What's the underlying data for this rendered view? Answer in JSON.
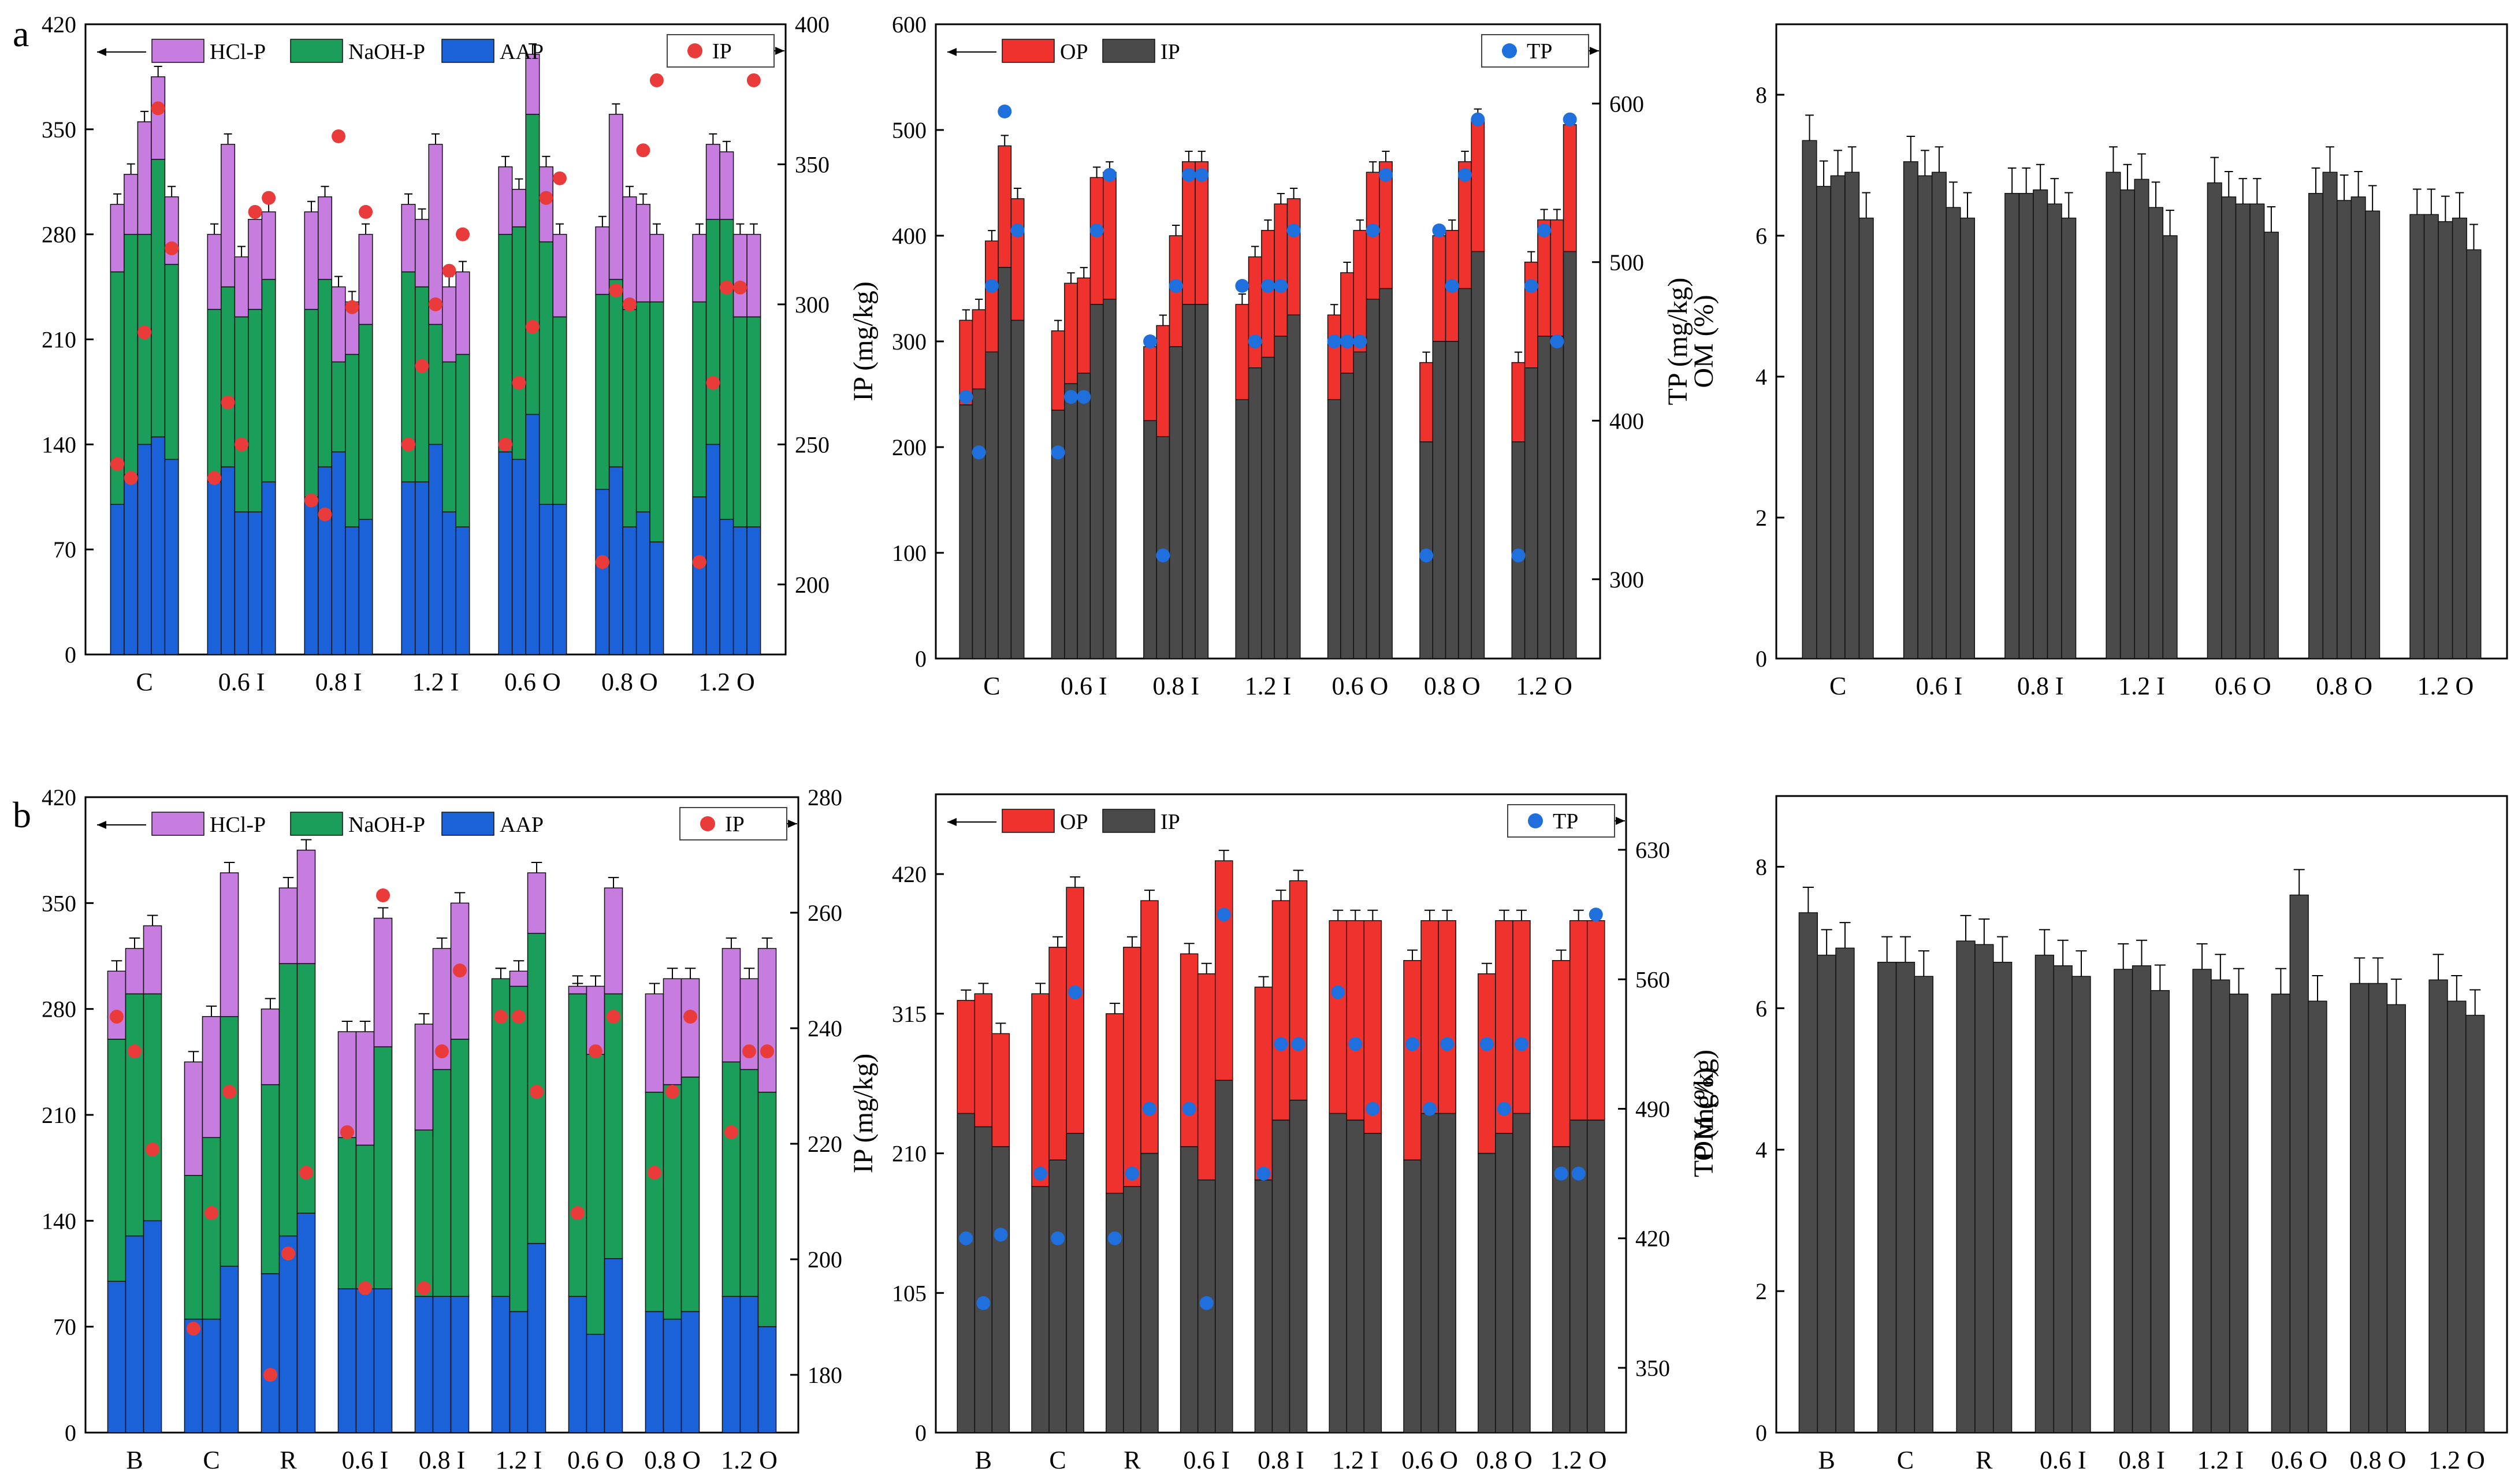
{
  "figure": {
    "row_labels": [
      "a",
      "b"
    ]
  },
  "colors": {
    "hcl": "#c77de0",
    "naoh": "#1a9e5a",
    "aap": "#1b62d8",
    "op": "#f0322e",
    "ip": "#4a4a4a",
    "om": "#4a4a4a",
    "ip_dot": "#ea3b3b",
    "tp_dot": "#1f6fdc"
  },
  "chart_data": [
    {
      "id": "a-frac",
      "type": "bar",
      "stacked": true,
      "categories": [
        "C",
        "0.6 I",
        "0.8 I",
        "1.2 I",
        "0.6 O",
        "0.8 O",
        "1.2 O"
      ],
      "bars_per_group": 5,
      "ylim": [
        0,
        420
      ],
      "yticks": [
        0,
        70,
        140,
        210,
        280,
        350,
        420
      ],
      "y2lim": [
        175,
        400
      ],
      "y2ticks": [
        200,
        250,
        300,
        350,
        400
      ],
      "legend": [
        "HCl-P",
        "NaOH-P",
        "AAP"
      ],
      "dot_legend": "IP",
      "series": [
        {
          "name": "AAP",
          "values": [
            [
              100,
              120,
              140,
              145,
              130
            ],
            [
              115,
              125,
              95,
              95,
              115
            ],
            [
              105,
              125,
              135,
              85,
              90
            ],
            [
              115,
              115,
              140,
              95,
              85
            ],
            [
              135,
              130,
              160,
              100,
              100
            ],
            [
              110,
              125,
              85,
              95,
              75
            ],
            [
              105,
              140,
              90,
              85,
              85
            ]
          ]
        },
        {
          "name": "NaOH-P",
          "values": [
            [
              155,
              160,
              140,
              185,
              130
            ],
            [
              115,
              120,
              130,
              135,
              135
            ],
            [
              125,
              125,
              60,
              115,
              130
            ],
            [
              140,
              130,
              80,
              100,
              115
            ],
            [
              145,
              155,
              200,
              175,
              125
            ],
            [
              130,
              125,
              145,
              140,
              160
            ],
            [
              130,
              150,
              200,
              140,
              140
            ]
          ]
        },
        {
          "name": "HCl-P",
          "values": [
            [
              45,
              40,
              75,
              55,
              45
            ],
            [
              50,
              95,
              40,
              60,
              45
            ],
            [
              65,
              55,
              50,
              35,
              60
            ],
            [
              45,
              45,
              120,
              50,
              55
            ],
            [
              45,
              25,
              40,
              50,
              55
            ],
            [
              45,
              110,
              75,
              65,
              45
            ],
            [
              45,
              50,
              45,
              55,
              55
            ]
          ]
        }
      ],
      "dots": [
        [
          243,
          238,
          290,
          370,
          320
        ],
        [
          238,
          265,
          250,
          333,
          338
        ],
        [
          230,
          225,
          360,
          299,
          333
        ],
        [
          250,
          278,
          300,
          312,
          325
        ],
        [
          250,
          272,
          292,
          338,
          345
        ],
        [
          208,
          305,
          300,
          355,
          380
        ],
        [
          208,
          272,
          306,
          306,
          380
        ]
      ]
    },
    {
      "id": "a-ip",
      "type": "bar",
      "stacked": true,
      "categories": [
        "C",
        "0.6 I",
        "0.8 I",
        "1.2 I",
        "0.6 O",
        "0.8 O",
        "1.2 O"
      ],
      "bars_per_group": 5,
      "ylabel": "IP (mg/kg)",
      "y2label": "TP (mg/kg)",
      "ylim": [
        0,
        600
      ],
      "yticks": [
        0,
        100,
        200,
        300,
        400,
        500,
        600
      ],
      "y2lim": [
        250,
        650
      ],
      "y2ticks": [
        300,
        400,
        500,
        600
      ],
      "legend": [
        "OP",
        "IP"
      ],
      "dot_legend": "TP",
      "series": [
        {
          "name": "IP",
          "values": [
            [
              240,
              255,
              290,
              370,
              320
            ],
            [
              235,
              260,
              270,
              335,
              340
            ],
            [
              225,
              210,
              295,
              335,
              335
            ],
            [
              245,
              275,
              285,
              305,
              325
            ],
            [
              245,
              270,
              290,
              340,
              350
            ],
            [
              205,
              300,
              300,
              350,
              385
            ],
            [
              205,
              275,
              305,
              305,
              385
            ]
          ]
        },
        {
          "name": "OP",
          "values": [
            [
              80,
              75,
              105,
              115,
              115
            ],
            [
              75,
              95,
              90,
              120,
              120
            ],
            [
              70,
              105,
              105,
              135,
              135
            ],
            [
              90,
              105,
              120,
              125,
              110
            ],
            [
              80,
              95,
              115,
              120,
              120
            ],
            [
              75,
              100,
              105,
              120,
              125
            ],
            [
              75,
              100,
              110,
              110,
              120
            ]
          ]
        }
      ],
      "dots": [
        [
          415,
          380,
          485,
          595,
          520
        ],
        [
          380,
          415,
          415,
          520,
          555
        ],
        [
          450,
          315,
          485,
          555,
          555
        ],
        [
          485,
          450,
          485,
          485,
          520
        ],
        [
          450,
          450,
          450,
          520,
          555
        ],
        [
          315,
          520,
          485,
          555,
          590
        ],
        [
          315,
          485,
          520,
          450,
          590
        ]
      ]
    },
    {
      "id": "a-om",
      "type": "bar",
      "stacked": false,
      "categories": [
        "C",
        "0.6 I",
        "0.8 I",
        "1.2 I",
        "0.6 O",
        "0.8 O",
        "1.2 O"
      ],
      "bars_per_group": 5,
      "ylabel": "OM (%)",
      "ylim": [
        0,
        9
      ],
      "yticks": [
        0,
        2,
        4,
        6,
        8
      ],
      "values": [
        [
          7.35,
          6.7,
          6.85,
          6.9,
          6.25
        ],
        [
          7.05,
          6.85,
          6.9,
          6.4,
          6.25
        ],
        [
          6.6,
          6.6,
          6.65,
          6.45,
          6.25
        ],
        [
          6.9,
          6.65,
          6.8,
          6.4,
          6.0
        ],
        [
          6.75,
          6.55,
          6.45,
          6.45,
          6.05
        ],
        [
          6.6,
          6.9,
          6.5,
          6.55,
          6.35
        ],
        [
          6.3,
          6.3,
          6.2,
          6.25,
          5.8
        ]
      ]
    },
    {
      "id": "b-frac",
      "type": "bar",
      "stacked": true,
      "categories": [
        "B",
        "C",
        "R",
        "0.6 I",
        "0.8 I",
        "1.2 I",
        "0.6 O",
        "0.8 O",
        "1.2 O"
      ],
      "bars_per_group": 3,
      "ylim": [
        0,
        420
      ],
      "yticks": [
        0,
        70,
        140,
        210,
        280,
        350,
        420
      ],
      "y2lim": [
        170,
        280
      ],
      "y2ticks": [
        180,
        200,
        220,
        240,
        260,
        280
      ],
      "legend": [
        "HCl-P",
        "NaOH-P",
        "AAP"
      ],
      "dot_legend": "IP",
      "series": [
        {
          "name": "AAP",
          "values": [
            [
              100,
              130,
              140
            ],
            [
              75,
              75,
              110
            ],
            [
              105,
              130,
              145
            ],
            [
              95,
              95,
              95
            ],
            [
              90,
              90,
              90
            ],
            [
              90,
              80,
              125
            ],
            [
              90,
              65,
              115
            ],
            [
              80,
              75,
              80
            ],
            [
              90,
              90,
              70
            ]
          ]
        },
        {
          "name": "NaOH-P",
          "values": [
            [
              160,
              160,
              150
            ],
            [
              95,
              120,
              165
            ],
            [
              125,
              180,
              165
            ],
            [
              100,
              95,
              160
            ],
            [
              110,
              150,
              170
            ],
            [
              210,
              215,
              205
            ],
            [
              200,
              185,
              175
            ],
            [
              145,
              155,
              155
            ],
            [
              155,
              150,
              155
            ]
          ]
        },
        {
          "name": "HCl-P",
          "values": [
            [
              45,
              30,
              45
            ],
            [
              75,
              80,
              95
            ],
            [
              50,
              50,
              75
            ],
            [
              70,
              75,
              85
            ],
            [
              70,
              80,
              90
            ],
            [
              0,
              10,
              40
            ],
            [
              5,
              45,
              70
            ],
            [
              65,
              70,
              65
            ],
            [
              75,
              60,
              95
            ]
          ]
        }
      ],
      "dots": [
        [
          242,
          236,
          219
        ],
        [
          188,
          208,
          229
        ],
        [
          180,
          201,
          215
        ],
        [
          222,
          195,
          263
        ],
        [
          195,
          236,
          250
        ],
        [
          242,
          242,
          229
        ],
        [
          208,
          236,
          242
        ],
        [
          215,
          229,
          242
        ],
        [
          222,
          236,
          236
        ]
      ]
    },
    {
      "id": "b-ip",
      "type": "bar",
      "stacked": true,
      "categories": [
        "B",
        "C",
        "R",
        "0.6 I",
        "0.8 I",
        "1.2 I",
        "0.6 O",
        "0.8 O",
        "1.2 O"
      ],
      "bars_per_group": 3,
      "ylabel": "IP (mg/kg)",
      "y2label": "TP (mg/kg)",
      "ylim": [
        0,
        480
      ],
      "yticks": [
        0,
        105,
        210,
        315,
        420
      ],
      "y2lim": [
        315,
        660
      ],
      "y2ticks": [
        350,
        420,
        490,
        560,
        630
      ],
      "legend": [
        "OP",
        "IP"
      ],
      "dot_legend": "TP",
      "series": [
        {
          "name": "IP",
          "values": [
            [
              240,
              230,
              215
            ],
            [
              185,
              205,
              225
            ],
            [
              180,
              185,
              210
            ],
            [
              215,
              190,
              265
            ],
            [
              190,
              235,
              250
            ],
            [
              240,
              235,
              225
            ],
            [
              205,
              240,
              240
            ],
            [
              210,
              225,
              240
            ],
            [
              215,
              235,
              235
            ]
          ]
        },
        {
          "name": "OP",
          "values": [
            [
              85,
              100,
              85
            ],
            [
              145,
              160,
              185
            ],
            [
              135,
              180,
              190
            ],
            [
              145,
              155,
              165
            ],
            [
              145,
              165,
              165
            ],
            [
              145,
              150,
              160
            ],
            [
              150,
              145,
              145
            ],
            [
              135,
              160,
              145
            ],
            [
              140,
              150,
              150
            ]
          ]
        }
      ],
      "dots": [
        [
          420,
          385,
          422
        ],
        [
          455,
          420,
          553
        ],
        [
          420,
          455,
          490
        ],
        [
          490,
          385,
          595
        ],
        [
          455,
          525,
          525
        ],
        [
          553,
          525,
          490
        ],
        [
          525,
          490,
          525
        ],
        [
          525,
          490,
          525
        ],
        [
          455,
          455,
          595
        ]
      ]
    },
    {
      "id": "b-om",
      "type": "bar",
      "stacked": false,
      "categories": [
        "B",
        "C",
        "R",
        "0.6 I",
        "0.8 I",
        "1.2 I",
        "0.6 O",
        "0.8 O",
        "1.2 O"
      ],
      "bars_per_group": 3,
      "ylabel": "OM (%)",
      "ylim": [
        0,
        9
      ],
      "yticks": [
        0,
        2,
        4,
        6,
        8
      ],
      "values": [
        [
          7.35,
          6.75,
          6.85
        ],
        [
          6.65,
          6.65,
          6.45
        ],
        [
          6.95,
          6.9,
          6.65
        ],
        [
          6.75,
          6.6,
          6.45
        ],
        [
          6.55,
          6.6,
          6.25
        ],
        [
          6.55,
          6.4,
          6.2
        ],
        [
          6.2,
          7.6,
          6.1
        ],
        [
          6.35,
          6.35,
          6.05
        ],
        [
          6.4,
          6.1,
          5.9
        ]
      ]
    }
  ]
}
